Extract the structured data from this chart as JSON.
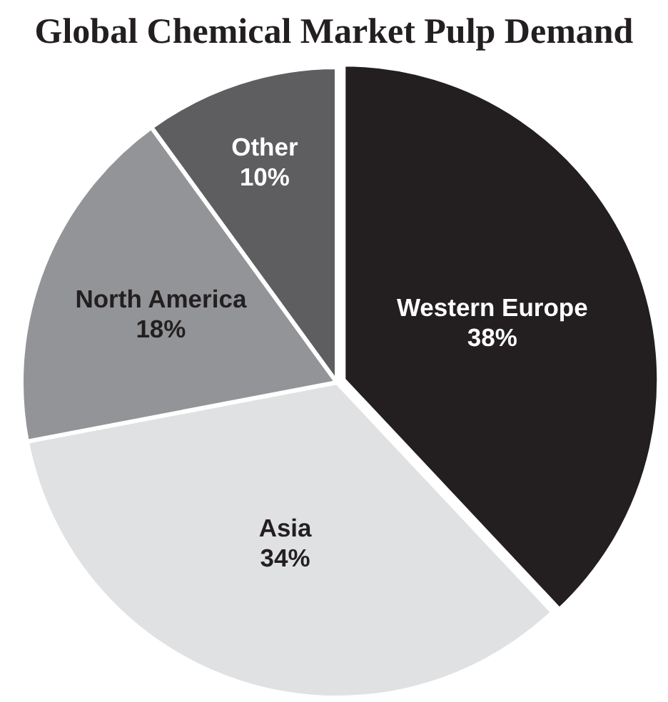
{
  "chart_data": {
    "type": "pie",
    "title": "Global Chemical Market Pulp Demand",
    "categories": [
      "Western Europe",
      "Asia",
      "North America",
      "Other"
    ],
    "values": [
      38,
      34,
      18,
      10
    ],
    "value_labels": [
      "38%",
      "34%",
      "18%",
      "10%"
    ],
    "colors": [
      "#231f20",
      "#e0e1e3",
      "#939497",
      "#5e5e60"
    ]
  }
}
